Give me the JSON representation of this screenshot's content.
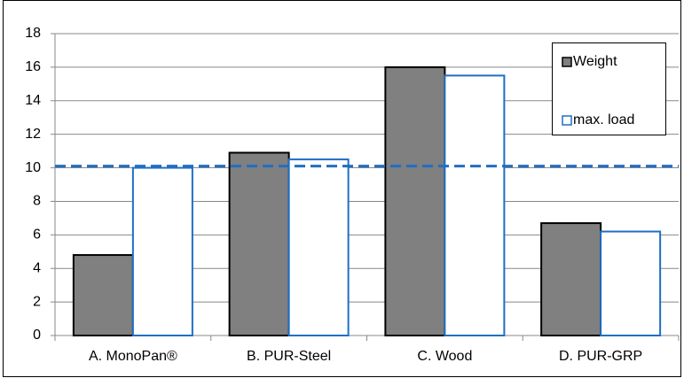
{
  "chart_data": {
    "type": "bar",
    "categories": [
      "A. MonoPan®",
      "B. PUR-Steel",
      "C. Wood",
      "D. PUR-GRP"
    ],
    "series": [
      {
        "name": "Weight",
        "color": "#808080",
        "values": [
          4.8,
          10.9,
          16.0,
          6.7
        ]
      },
      {
        "name": "max. load",
        "color": "#1f6fc4",
        "values": [
          10.0,
          10.5,
          15.5,
          6.2
        ]
      }
    ],
    "reference_line": 10.1,
    "ylim": [
      0,
      18
    ],
    "yticks": [
      0,
      2,
      4,
      6,
      8,
      10,
      12,
      14,
      16,
      18
    ],
    "grid": true,
    "legend": "top-right"
  }
}
